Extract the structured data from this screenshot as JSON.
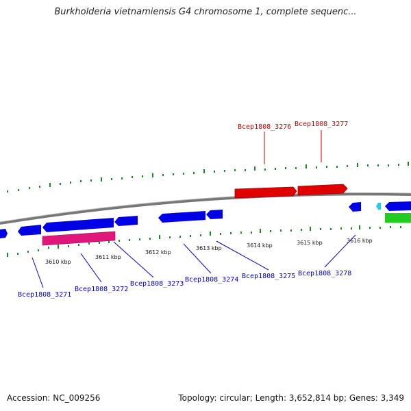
{
  "title": "Burkholderia vietnamiensis G4 chromosome 1, complete sequenc...",
  "footer": {
    "accession": "Accession: NC_009256",
    "stats": "Topology: circular; Length: 3,652,814 bp; Genes: 3,349"
  },
  "colors": {
    "forward_gene": "#e00000",
    "reverse_gene": "#0000e6",
    "rna_gene": "#e0167a",
    "other_gene": "#22cc22",
    "misc_feature": "#22ccee",
    "backbone": "#888888",
    "gc_tick": "#1a8a1a"
  },
  "scale_ticks": [
    "3610 kbp",
    "3611 kbp",
    "3612 kbp",
    "3613 kbp",
    "3614 kbp",
    "3615 kbp",
    "3616 kbp"
  ],
  "gene_labels_forward": [
    "Bcep1808_3276",
    "Bcep1808_3277"
  ],
  "gene_labels_reverse": [
    "Bcep1808_3271",
    "Bcep1808_3272",
    "Bcep1808_3273",
    "Bcep1808_3274",
    "Bcep1808_3275",
    "Bcep1808_3278"
  ]
}
